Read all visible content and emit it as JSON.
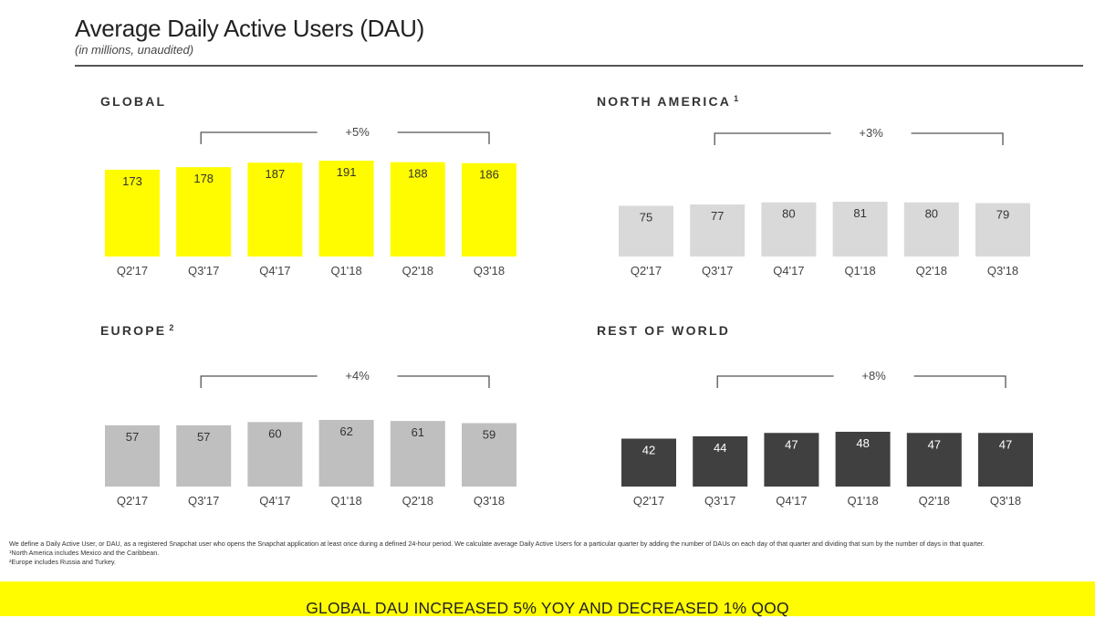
{
  "header": {
    "title": "Average Daily Active Users (DAU)",
    "subtitle": "(in millions, unaudited)"
  },
  "footnotes": {
    "definition": "We define a Daily Active User, or DAU, as a registered Snapchat user who opens the Snapchat application at least once during a defined 24-hour period. We calculate average Daily Active Users for a particular quarter by adding the number of DAUs on each day of that quarter and dividing that sum by the number of days in that quarter.",
    "note1": "¹North America includes Mexico and the Caribbean.",
    "note2": "²Europe includes Russia and Turkey."
  },
  "banner": {
    "text": "GLOBAL DAU INCREASED 5% YOY AND DECREASED 1% QOQ"
  },
  "chart_data": [
    {
      "type": "bar",
      "title": "GLOBAL",
      "title_sup": "",
      "categories": [
        "Q2'17",
        "Q3'17",
        "Q4'17",
        "Q1'18",
        "Q2'18",
        "Q3'18"
      ],
      "values": [
        173,
        178,
        187,
        191,
        188,
        186
      ],
      "growth_annotation": "+5%",
      "bar_color": "#FFFC00",
      "label_color": "#333333"
    },
    {
      "type": "bar",
      "title": "NORTH AMERICA",
      "title_sup": "1",
      "categories": [
        "Q2'17",
        "Q3'17",
        "Q4'17",
        "Q1'18",
        "Q2'18",
        "Q3'18"
      ],
      "values": [
        75,
        77,
        80,
        81,
        80,
        79
      ],
      "growth_annotation": "+3%",
      "bar_color": "#D9D9D9",
      "label_color": "#333333"
    },
    {
      "type": "bar",
      "title": "EUROPE",
      "title_sup": "2",
      "categories": [
        "Q2'17",
        "Q3'17",
        "Q4'17",
        "Q1'18",
        "Q2'18",
        "Q3'18"
      ],
      "values": [
        57,
        57,
        60,
        62,
        61,
        59
      ],
      "growth_annotation": "+4%",
      "bar_color": "#BFBFBF",
      "label_color": "#333333"
    },
    {
      "type": "bar",
      "title": "REST OF WORLD",
      "title_sup": "",
      "categories": [
        "Q2'17",
        "Q3'17",
        "Q4'17",
        "Q1'18",
        "Q2'18",
        "Q3'18"
      ],
      "values": [
        42,
        44,
        47,
        48,
        47,
        47
      ],
      "growth_annotation": "+8%",
      "bar_color": "#404040",
      "label_color": "#FFFFFF"
    }
  ]
}
